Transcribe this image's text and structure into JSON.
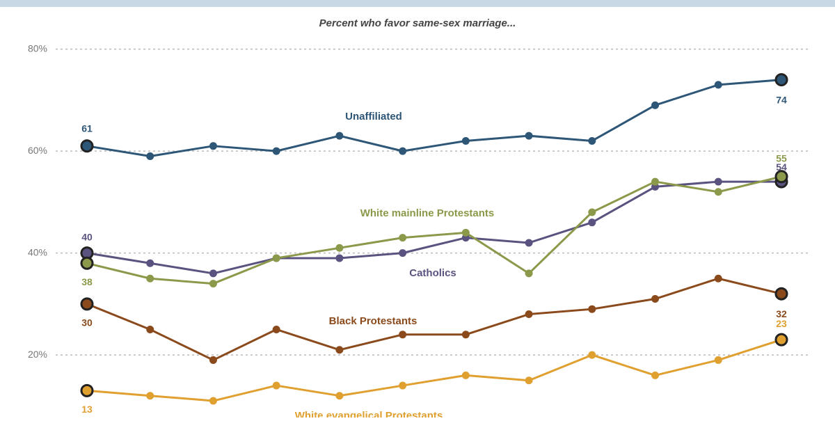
{
  "chart_data": {
    "type": "line",
    "subtitle": "Percent who favor same-sex marriage...",
    "categories": [
      null,
      null,
      null,
      null,
      null,
      null,
      null,
      null,
      null,
      null,
      null,
      null
    ],
    "ylim": [
      8,
      82
    ],
    "yticks": [
      {
        "value": 20,
        "label": "20%"
      },
      {
        "value": 40,
        "label": "40%"
      },
      {
        "value": 60,
        "label": "60%"
      },
      {
        "value": 80,
        "label": "80%"
      }
    ],
    "grid": true,
    "series": [
      {
        "name": "Unaffiliated",
        "color": "#2e5677",
        "values": [
          61,
          59,
          61,
          60,
          63,
          60,
          62,
          63,
          62,
          69,
          73,
          74
        ]
      },
      {
        "name": "Catholics",
        "color": "#5a5380",
        "values": [
          40,
          38,
          36,
          39,
          39,
          40,
          43,
          42,
          46,
          53,
          54,
          54
        ]
      },
      {
        "name": "White mainline Protestants",
        "color": "#8a9a4a",
        "values": [
          38,
          35,
          34,
          39,
          41,
          43,
          44,
          36,
          48,
          54,
          52,
          55
        ]
      },
      {
        "name": "Black Protestants",
        "color": "#8b4a1c",
        "values": [
          30,
          25,
          19,
          25,
          21,
          24,
          24,
          28,
          29,
          31,
          35,
          32
        ]
      },
      {
        "name": "White evangelical Protestants",
        "color": "#e0a030",
        "values": [
          13,
          12,
          11,
          14,
          12,
          14,
          16,
          15,
          20,
          16,
          19,
          23
        ]
      }
    ]
  }
}
